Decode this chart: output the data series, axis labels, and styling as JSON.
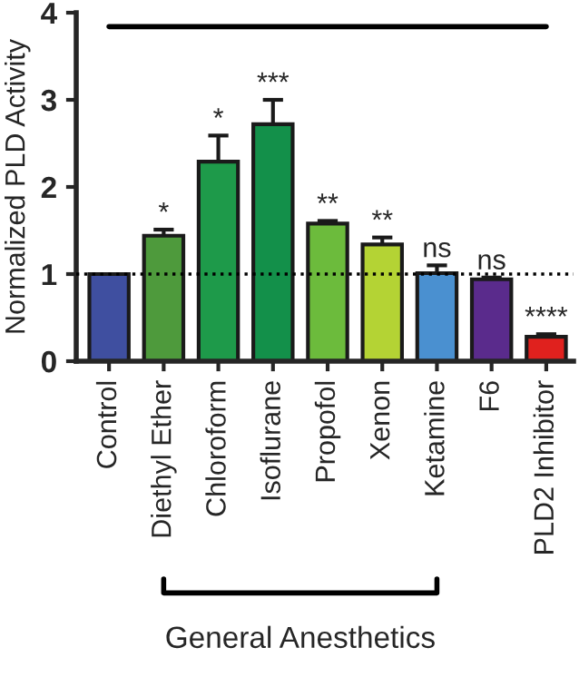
{
  "chart_data": {
    "type": "bar",
    "ylabel": "Normalized PLD Activity",
    "categories": [
      "Control",
      "Diethyl Ether",
      "Chloroform",
      "Isoflurane",
      "Propofol",
      "Xenon",
      "Ketamine",
      "F6",
      "PLD2 Inhibitor"
    ],
    "values": [
      1.0,
      1.44,
      2.29,
      2.72,
      1.58,
      1.34,
      1.01,
      0.94,
      0.28
    ],
    "errors": [
      null,
      0.07,
      0.3,
      0.28,
      0.03,
      0.08,
      0.09,
      0.02,
      0.03
    ],
    "colors": [
      "#3f4fa0",
      "#4e9a3c",
      "#1e9a4a",
      "#13904a",
      "#6cbb3c",
      "#b4d334",
      "#4a90d0",
      "#5a2b8c",
      "#e0211e"
    ],
    "ylim": [
      0,
      4
    ],
    "yticks": [
      0,
      1,
      2,
      3,
      4
    ],
    "grid": false,
    "legend": false,
    "ref_lines": [
      {
        "axis": "y",
        "value": 1,
        "line_style": "dotted",
        "color": "#000000"
      },
      {
        "axis": "y",
        "value": 3.84,
        "line_style": "solid",
        "color": "#000000"
      }
    ],
    "annotations": [
      {
        "text": "*",
        "x": "Diethyl Ether",
        "y": 1.51
      },
      {
        "text": "*",
        "x": "Chloroform",
        "y": 2.59
      },
      {
        "text": "***",
        "x": "Isoflurane",
        "y": 3.0
      },
      {
        "text": "**",
        "x": "Propofol",
        "y": 1.61
      },
      {
        "text": "**",
        "x": "Xenon",
        "y": 1.42
      },
      {
        "text": "ns",
        "x": "Ketamine",
        "y": 1.1
      },
      {
        "text": "ns",
        "x": "F6",
        "y": 0.96
      },
      {
        "text": "****",
        "x": "PLD2 Inhibitor",
        "y": 0.31
      },
      "General Anesthetics"
    ]
  }
}
